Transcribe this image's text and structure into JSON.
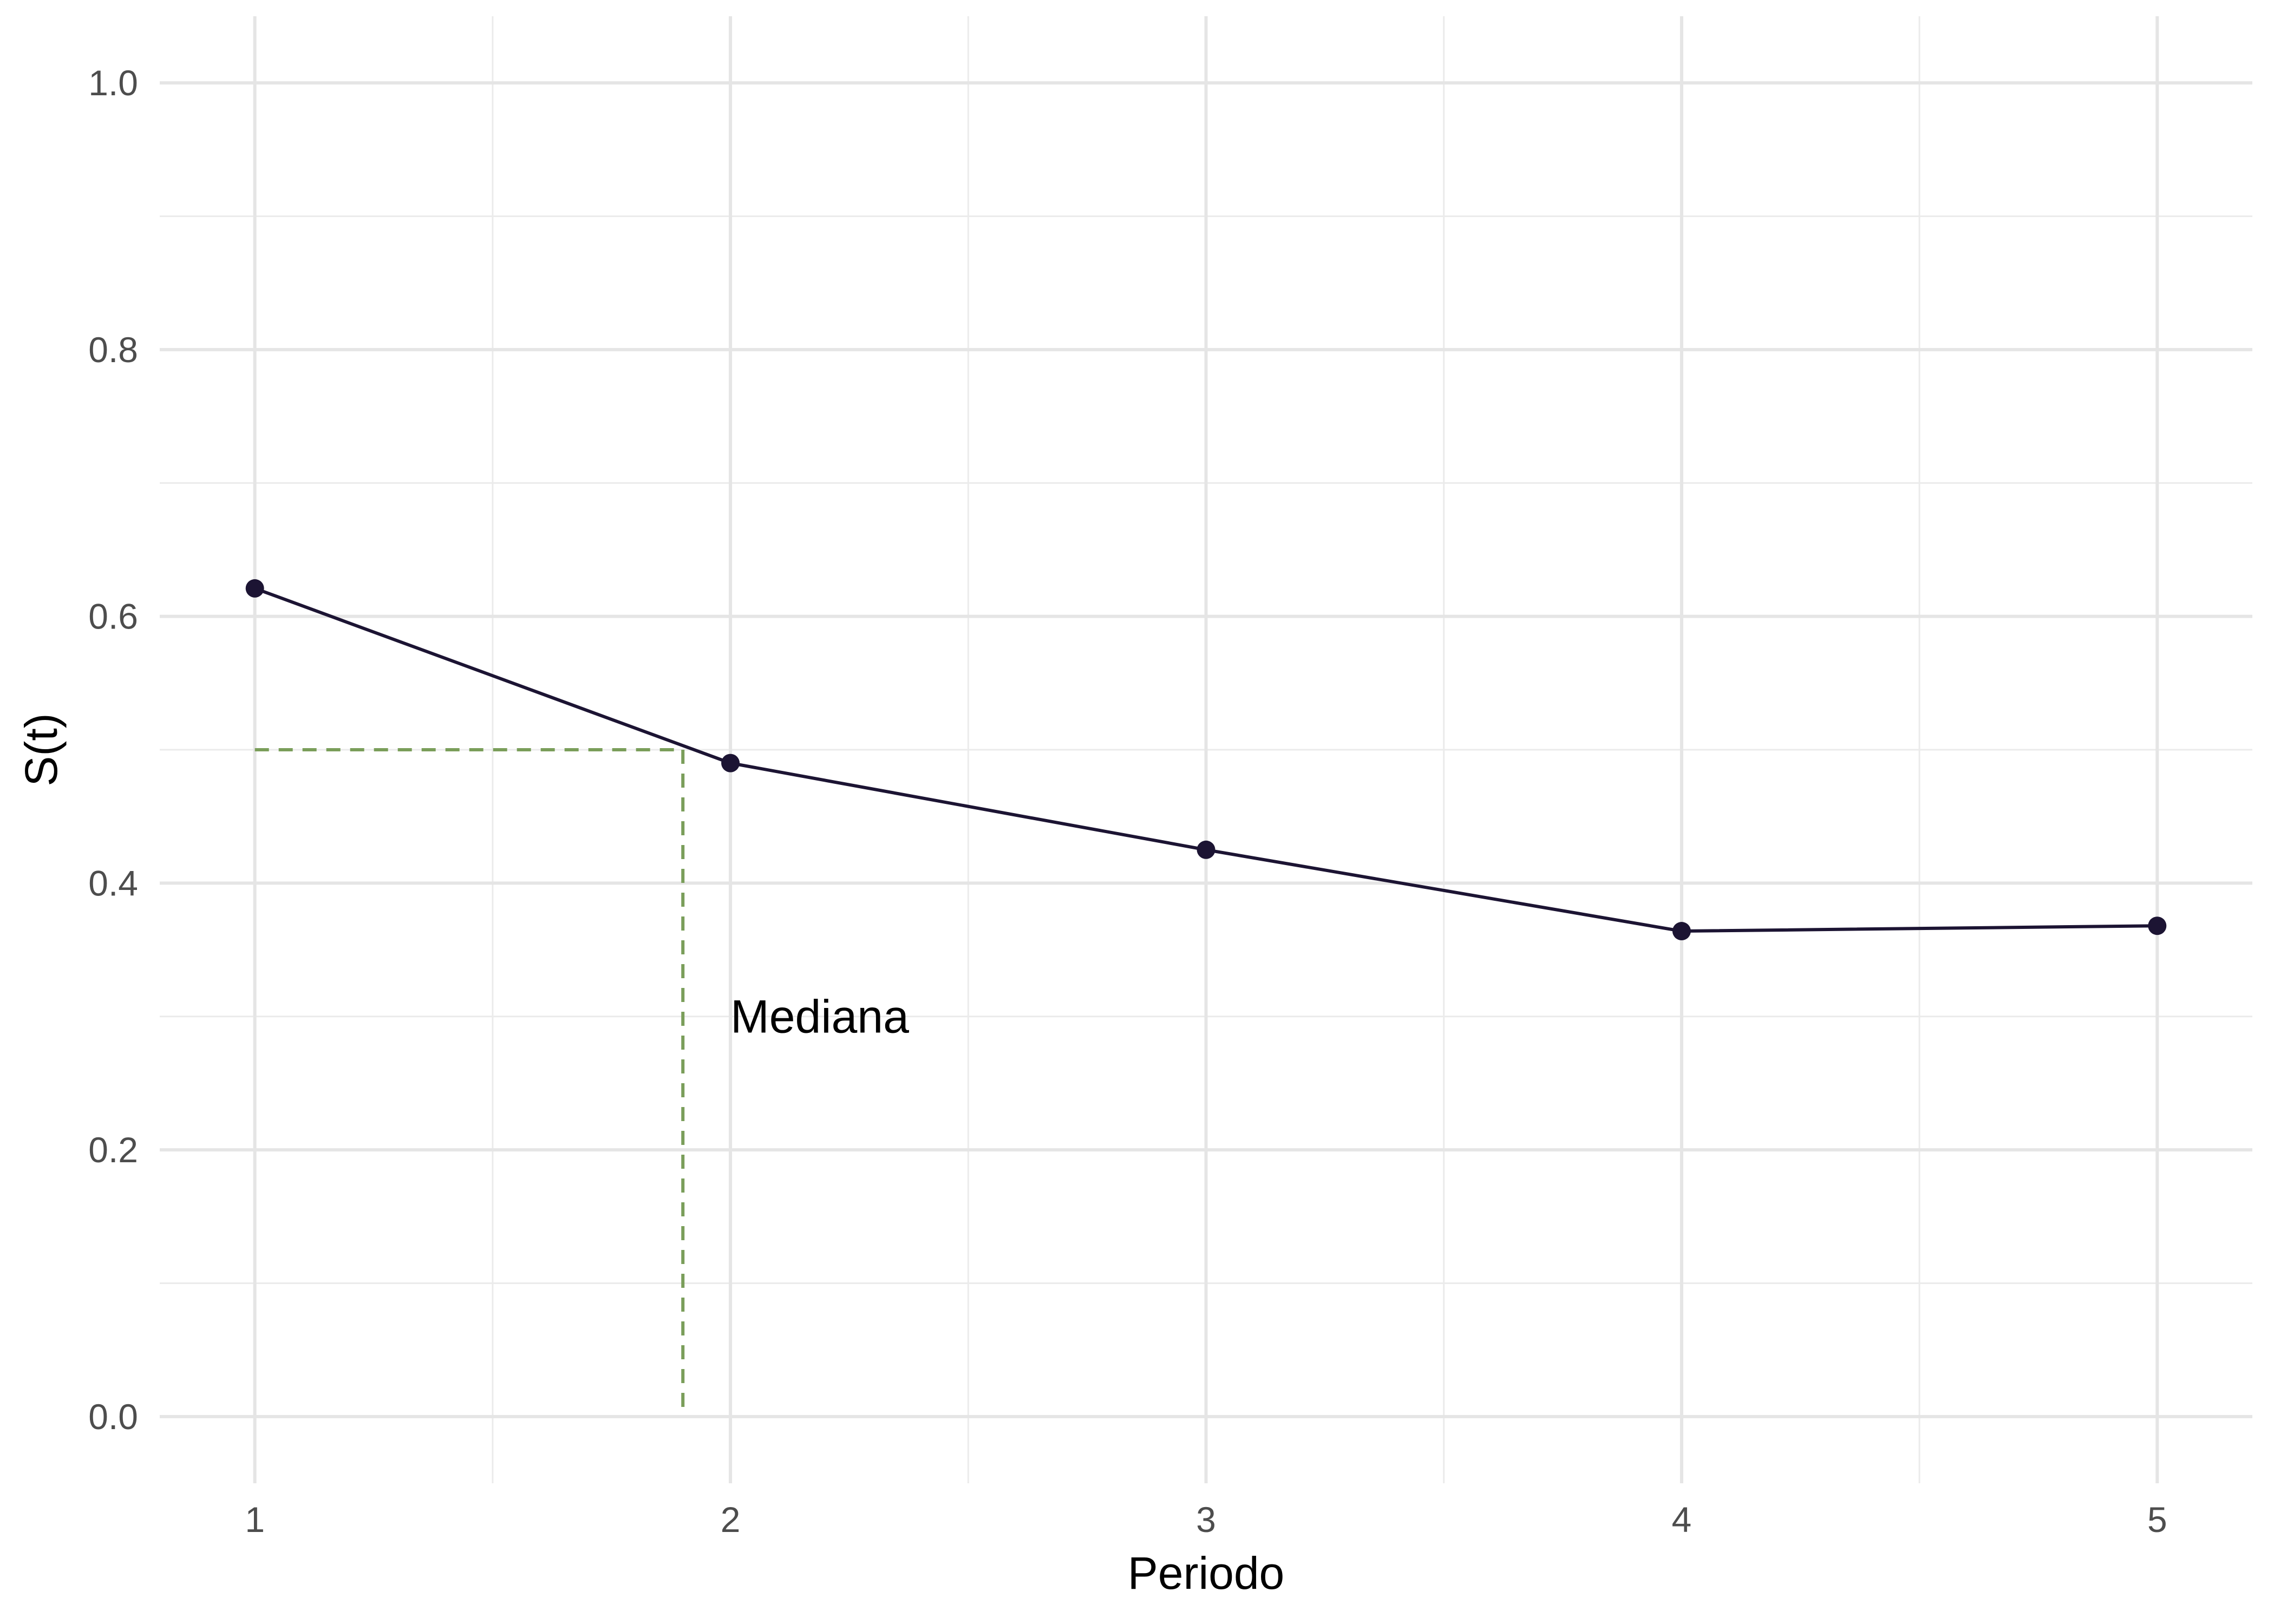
{
  "chart_data": {
    "type": "line",
    "xlabel": "Periodo",
    "ylabel": "S(t)",
    "xlim": [
      0.8,
      5.2
    ],
    "ylim": [
      -0.05,
      1.05
    ],
    "x_ticks": [
      1,
      2,
      3,
      4,
      5
    ],
    "y_ticks": [
      0.0,
      0.2,
      0.4,
      0.6,
      0.8,
      1.0
    ],
    "y_tick_labels": [
      "0.0",
      "0.2",
      "0.4",
      "0.6",
      "0.8",
      "1.0"
    ],
    "grid": true,
    "series": [
      {
        "x": [
          1,
          2,
          3,
          4,
          5
        ],
        "values": [
          0.621,
          0.49,
          0.425,
          0.364,
          0.368
        ],
        "color": "#1c1433"
      }
    ],
    "reference_lines": {
      "median_y": 0.5,
      "median_x": 1.9,
      "color": "#7a9e5a",
      "style": "dashed"
    },
    "annotations": [
      {
        "text": "Mediana",
        "x": 2.0,
        "y": 0.3
      }
    ]
  }
}
